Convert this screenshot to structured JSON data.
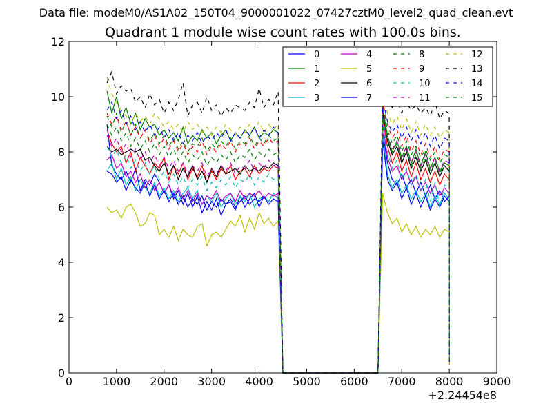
{
  "chart_data": {
    "type": "line",
    "suptitle": "Data file: modeM0/AS1A02_150T04_9000001022_07427cztM0_level2_quad_clean.evt",
    "title": "Quadrant 1 module wise count rates with 100.0s bins.",
    "xlabel": "",
    "ylabel": "",
    "x_offset_label": "+2.24454e8",
    "xlim": [
      0,
      9000
    ],
    "ylim": [
      0,
      12
    ],
    "x_ticks": [
      0,
      1000,
      2000,
      3000,
      4000,
      5000,
      6000,
      7000,
      8000,
      9000
    ],
    "y_ticks": [
      0,
      2,
      4,
      6,
      8,
      10,
      12
    ],
    "legend_position": "top-right",
    "gap_x": [
      4500,
      4600,
      4700,
      4800,
      4900,
      5000,
      5100,
      5200,
      5300,
      5400,
      5500,
      5600,
      5700,
      5800,
      5900,
      6000,
      6100,
      6200,
      6300,
      6400,
      6500
    ],
    "segment1_start": 800,
    "segment2_start": 6600,
    "final_x": 8000,
    "series": [
      {
        "name": "0",
        "color": "#0000ff",
        "dash": "solid",
        "seg1": [
          9.0,
          7.5,
          7.2,
          7.0,
          7.3,
          6.9,
          7.4,
          6.6,
          7.0,
          6.8,
          7.2,
          6.9,
          6.5,
          6.8,
          6.3,
          6.6,
          6.1,
          6.5,
          6.0,
          6.4,
          5.8,
          6.2,
          5.9,
          6.3,
          5.7,
          6.1,
          6.2,
          5.9,
          6.4,
          6.0,
          6.3,
          6.5,
          6.0,
          6.4,
          6.2,
          6.5,
          6.3
        ],
        "seg2": [
          8.7,
          7.6,
          7.0,
          6.8,
          7.2,
          6.7,
          7.0,
          6.5,
          6.9,
          6.4,
          6.8,
          6.3,
          6.6,
          6.2,
          6.4
        ]
      },
      {
        "name": "1",
        "color": "#008000",
        "dash": "solid",
        "seg1": [
          10.2,
          9.4,
          10.0,
          9.2,
          9.6,
          9.0,
          9.4,
          8.8,
          9.2,
          8.9,
          9.0,
          8.6,
          8.8,
          8.5,
          8.7,
          8.4,
          8.9,
          8.3,
          8.6,
          8.4,
          8.8,
          8.5,
          8.7,
          8.3,
          8.6,
          8.8,
          8.4,
          8.7,
          8.5,
          8.8,
          8.6,
          8.9,
          8.5,
          8.7,
          8.6,
          8.8,
          8.7
        ],
        "seg2": [
          9.6,
          8.6,
          8.0,
          8.4,
          7.8,
          8.2,
          7.6,
          8.1,
          7.5,
          8.0,
          7.4,
          7.8,
          7.3,
          7.6,
          7.5
        ]
      },
      {
        "name": "2",
        "color": "#ff0000",
        "dash": "solid",
        "seg1": [
          8.8,
          8.3,
          8.0,
          8.2,
          7.6,
          8.0,
          7.3,
          7.8,
          7.5,
          7.2,
          7.6,
          7.4,
          7.8,
          7.0,
          7.5,
          7.2,
          7.6,
          7.0,
          7.4,
          7.1,
          7.5,
          6.9,
          7.3,
          7.0,
          7.4,
          7.2,
          7.5,
          7.0,
          7.3,
          7.4,
          7.1,
          7.5,
          7.2,
          7.4,
          7.3,
          7.5,
          7.4
        ],
        "seg2": [
          9.2,
          8.2,
          7.6,
          8.0,
          7.3,
          7.7,
          7.1,
          7.6,
          7.0,
          7.4,
          6.9,
          7.3,
          6.8,
          7.2,
          7.0
        ]
      },
      {
        "name": "3",
        "color": "#00bfbf",
        "dash": "solid",
        "seg1": [
          7.3,
          7.6,
          7.0,
          7.4,
          6.8,
          7.1,
          6.6,
          7.0,
          6.7,
          6.5,
          6.9,
          6.4,
          6.7,
          6.3,
          6.6,
          6.2,
          6.5,
          6.7,
          6.3,
          6.6,
          6.1,
          6.4,
          6.2,
          6.5,
          6.0,
          6.3,
          6.5,
          6.1,
          6.4,
          6.2,
          6.5,
          6.0,
          6.3,
          6.4,
          6.2,
          6.5,
          6.3
        ],
        "seg2": [
          8.6,
          7.2,
          6.7,
          7.0,
          6.5,
          6.8,
          6.3,
          6.6,
          6.2,
          6.5,
          6.0,
          6.4,
          6.1,
          6.5,
          6.3
        ]
      },
      {
        "name": "4",
        "color": "#bf00bf",
        "dash": "solid",
        "seg1": [
          7.7,
          7.9,
          7.4,
          7.6,
          7.1,
          7.3,
          6.9,
          7.2,
          6.7,
          7.0,
          6.6,
          6.9,
          6.5,
          6.8,
          6.4,
          6.7,
          6.3,
          6.6,
          6.2,
          6.5,
          6.1,
          6.4,
          6.3,
          6.6,
          6.2,
          6.4,
          6.5,
          6.2,
          6.6,
          6.3,
          6.5,
          6.4,
          6.6,
          6.3,
          6.5,
          6.4,
          6.5
        ],
        "seg2": [
          9.0,
          7.8,
          7.3,
          7.5,
          7.0,
          7.3,
          6.8,
          7.1,
          6.6,
          6.9,
          6.5,
          6.8,
          6.4,
          6.7,
          6.5
        ]
      },
      {
        "name": "5",
        "color": "#bfbf00",
        "dash": "solid",
        "seg1": [
          6.0,
          5.8,
          5.9,
          5.6,
          6.0,
          6.1,
          5.8,
          5.3,
          5.4,
          5.8,
          5.7,
          5.0,
          5.2,
          4.9,
          5.3,
          4.8,
          5.2,
          5.0,
          4.9,
          5.3,
          5.4,
          4.6,
          5.0,
          5.1,
          4.9,
          5.2,
          5.5,
          5.3,
          5.7,
          5.1,
          5.6,
          5.2,
          5.8,
          5.4,
          5.6,
          5.3,
          5.5
        ],
        "seg2": [
          6.5,
          5.8,
          5.4,
          5.6,
          5.1,
          5.4,
          5.0,
          5.3,
          4.9,
          5.2,
          5.0,
          5.3,
          4.9,
          5.2,
          5.1
        ]
      },
      {
        "name": "6",
        "color": "#000000",
        "dash": "solid",
        "seg1": [
          8.2,
          8.0,
          8.1,
          7.9,
          8.0,
          8.1,
          8.0,
          8.1,
          7.7,
          7.8,
          7.5,
          7.3,
          7.6,
          7.2,
          7.5,
          7.0,
          7.4,
          7.1,
          7.5,
          7.0,
          7.3,
          6.9,
          7.4,
          7.1,
          7.5,
          7.2,
          7.3,
          7.4,
          7.2,
          7.5,
          7.3,
          7.4,
          7.3,
          7.5,
          7.4,
          7.6,
          7.5
        ],
        "seg2": [
          9.4,
          8.4,
          7.9,
          8.2,
          7.6,
          8.0,
          7.4,
          7.8,
          7.3,
          7.7,
          7.2,
          7.6,
          7.1,
          7.5,
          7.3
        ]
      },
      {
        "name": "7",
        "color": "#0000ff",
        "dash": "solid",
        "seg1": [
          7.3,
          7.2,
          6.9,
          7.1,
          6.6,
          7.0,
          6.7,
          6.5,
          6.9,
          6.4,
          6.8,
          6.3,
          6.6,
          6.2,
          6.5,
          6.1,
          6.4,
          6.0,
          6.3,
          6.1,
          6.4,
          5.9,
          6.2,
          6.0,
          6.3,
          6.1,
          6.3,
          6.0,
          6.2,
          6.4,
          6.1,
          6.3,
          6.2,
          6.4,
          6.1,
          6.3,
          6.2
        ],
        "seg2": [
          8.4,
          7.0,
          6.6,
          6.9,
          6.3,
          6.7,
          6.1,
          6.5,
          6.0,
          6.4,
          5.9,
          6.3,
          6.0,
          6.4,
          6.2
        ]
      },
      {
        "name": "8",
        "color": "#008000",
        "dash": "dash",
        "seg1": [
          9.3,
          8.9,
          9.4,
          8.7,
          9.1,
          8.6,
          9.0,
          8.5,
          8.8,
          8.4,
          8.7,
          8.3,
          8.6,
          8.2,
          8.5,
          8.1,
          8.4,
          8.0,
          8.3,
          8.2,
          8.5,
          8.0,
          8.3,
          8.1,
          8.4,
          8.2,
          8.5,
          8.1,
          8.4,
          8.3,
          8.6,
          8.2,
          8.5,
          8.3,
          8.6,
          8.4,
          8.5
        ],
        "seg2": [
          9.7,
          8.8,
          8.3,
          8.6,
          8.0,
          8.4,
          7.9,
          8.2,
          7.8,
          8.1,
          7.7,
          8.0,
          7.6,
          7.9,
          7.8
        ]
      },
      {
        "name": "9",
        "color": "#ff0000",
        "dash": "dash",
        "seg1": [
          9.4,
          9.0,
          9.3,
          8.8,
          9.1,
          8.6,
          8.9,
          8.5,
          8.8,
          8.3,
          8.6,
          8.2,
          8.5,
          8.1,
          8.4,
          8.0,
          8.3,
          7.9,
          8.2,
          8.0,
          8.4,
          7.9,
          8.2,
          8.0,
          8.3,
          8.1,
          8.4,
          8.0,
          8.3,
          8.2,
          8.5,
          8.1,
          8.4,
          8.2,
          8.5,
          8.3,
          8.4
        ],
        "seg2": [
          9.8,
          9.0,
          8.5,
          8.8,
          8.2,
          8.6,
          8.0,
          8.4,
          7.9,
          8.3,
          7.8,
          8.2,
          7.7,
          8.1,
          8.0
        ]
      },
      {
        "name": "10",
        "color": "#00bfbf",
        "dash": "dash",
        "seg1": [
          8.2,
          7.8,
          8.1,
          7.6,
          7.9,
          7.4,
          7.7,
          7.3,
          7.6,
          7.2,
          7.5,
          7.0,
          7.3,
          6.9,
          7.2,
          6.8,
          7.1,
          6.7,
          7.0,
          6.8,
          7.1,
          6.6,
          6.9,
          6.7,
          7.0,
          6.8,
          7.1,
          6.7,
          7.0,
          6.9,
          7.2,
          6.8,
          7.1,
          6.9,
          7.2,
          7.0,
          7.1
        ],
        "seg2": [
          9.1,
          8.0,
          7.4,
          7.7,
          7.0,
          7.4,
          6.8,
          7.2,
          6.6,
          7.0,
          6.2,
          6.9,
          6.0,
          6.8,
          6.7
        ]
      },
      {
        "name": "11",
        "color": "#bf00bf",
        "dash": "dash",
        "seg1": [
          8.6,
          8.2,
          8.5,
          8.0,
          8.3,
          7.8,
          8.1,
          7.7,
          8.0,
          7.6,
          7.9,
          7.5,
          7.8,
          7.4,
          7.7,
          7.3,
          7.6,
          7.2,
          7.5,
          7.3,
          7.6,
          7.1,
          7.4,
          7.2,
          7.5,
          7.3,
          7.6,
          7.2,
          7.5,
          7.4,
          7.7,
          7.3,
          7.6,
          7.4,
          7.7,
          7.5,
          7.6
        ],
        "seg2": [
          9.5,
          8.6,
          8.1,
          8.4,
          7.8,
          8.2,
          7.6,
          8.0,
          7.5,
          7.9,
          7.4,
          7.8,
          7.3,
          7.7,
          7.6
        ]
      },
      {
        "name": "12",
        "color": "#bfbf00",
        "dash": "dash",
        "seg1": [
          10.7,
          10.1,
          9.8,
          9.5,
          9.3,
          9.0,
          9.4,
          9.1,
          9.3,
          9.0,
          9.4,
          9.2,
          8.9,
          9.1,
          8.8,
          9.0,
          8.7,
          9.1,
          8.8,
          9.0,
          8.7,
          8.9,
          8.6,
          8.9,
          8.7,
          9.0,
          8.8,
          8.6,
          8.9,
          8.7,
          9.0,
          8.8,
          9.1,
          8.7,
          9.0,
          8.8,
          9.0
        ],
        "seg2": [
          10.1,
          9.4,
          9.0,
          9.3,
          8.8,
          9.2,
          8.7,
          9.1,
          8.6,
          9.0,
          8.6,
          8.9,
          8.5,
          8.8,
          8.7
        ]
      },
      {
        "name": "13",
        "color": "#000000",
        "dash": "dash",
        "seg1": [
          10.5,
          10.9,
          10.1,
          10.4,
          10.2,
          10.3,
          9.8,
          10.0,
          9.6,
          10.1,
          9.7,
          9.9,
          9.4,
          9.8,
          9.5,
          9.9,
          10.5,
          9.3,
          9.7,
          9.8,
          9.4,
          10.0,
          9.5,
          9.7,
          9.3,
          9.6,
          9.4,
          9.7,
          9.6,
          9.5,
          9.8,
          9.6,
          10.3,
          9.6,
          9.9,
          9.7,
          10.2
        ],
        "seg2": [
          10.6,
          10.0,
          9.6,
          9.9,
          9.4,
          9.8,
          9.5,
          9.7,
          9.4,
          9.6,
          9.3,
          9.8,
          9.2,
          9.5,
          9.4
        ]
      },
      {
        "name": "14",
        "color": "#0000ff",
        "dash": "dash",
        "seg1": [
          9.5,
          9.8,
          9.2,
          9.5,
          9.0,
          9.3,
          8.8,
          9.1,
          8.7,
          9.0,
          8.6,
          8.9,
          8.5,
          8.8,
          8.4,
          8.7,
          8.3,
          8.6,
          8.4,
          8.7,
          8.3,
          8.6,
          8.4,
          8.7,
          8.5,
          8.8,
          8.4,
          8.7,
          8.5,
          8.8,
          8.6,
          8.9,
          8.5,
          8.8,
          8.6,
          8.9,
          8.7
        ],
        "seg2": [
          9.9,
          9.1,
          8.7,
          9.0,
          8.5,
          8.9,
          8.4,
          8.8,
          8.3,
          8.7,
          8.2,
          8.6,
          8.1,
          8.5,
          8.4
        ]
      },
      {
        "name": "15",
        "color": "#008000",
        "dash": "dash",
        "seg1": [
          9.0,
          8.6,
          8.9,
          8.4,
          8.7,
          8.2,
          8.5,
          8.1,
          8.4,
          8.0,
          8.3,
          7.9,
          8.2,
          7.8,
          8.1,
          7.7,
          8.0,
          7.6,
          7.9,
          7.7,
          8.0,
          7.5,
          7.8,
          7.6,
          7.9,
          7.7,
          8.0,
          7.6,
          7.9,
          7.8,
          8.1,
          7.7,
          8.0,
          7.8,
          8.1,
          7.9,
          8.0
        ],
        "seg2": [
          9.3,
          8.5,
          8.0,
          8.3,
          7.7,
          8.1,
          7.5,
          7.9,
          7.4,
          7.8,
          7.3,
          7.7,
          7.2,
          7.6,
          7.5
        ]
      }
    ]
  }
}
